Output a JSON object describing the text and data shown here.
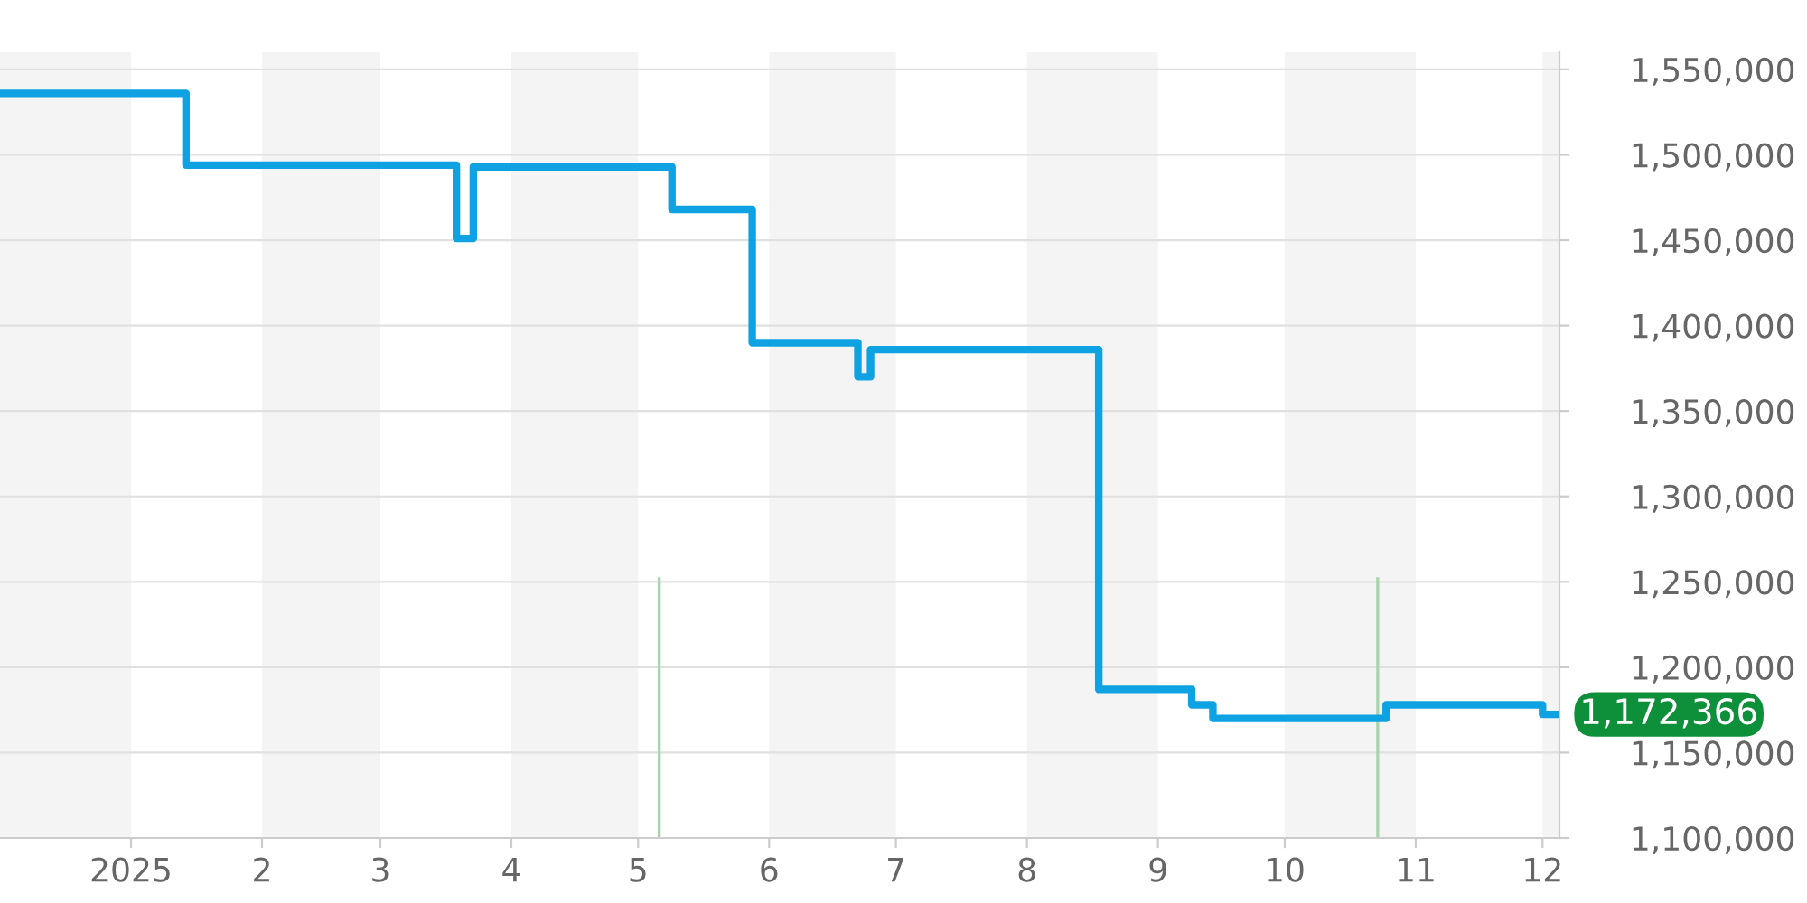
{
  "chart_data": {
    "type": "step",
    "x": [
      "2024-12-01",
      "2025-01-14",
      "2025-03-19",
      "2025-03-23",
      "2025-05-09",
      "2025-05-28",
      "2025-06-22",
      "2025-06-25",
      "2025-08-18",
      "2025-09-09",
      "2025-09-14",
      "2025-10-25",
      "2025-12-01",
      "2025-12-05"
    ],
    "series": [
      {
        "color": "#0ea2e3",
        "values": [
          1536000,
          1494000,
          1451000,
          1493000,
          1468000,
          1390000,
          1370000,
          1386000,
          1187000,
          1178000,
          1170000,
          1178000,
          1172366,
          1172366
        ]
      }
    ],
    "xlim": [
      "2024-12-01",
      "2025-12-05"
    ],
    "xticks": [
      {
        "value": "2025-01-01",
        "label": "2025"
      },
      {
        "value": "2025-02-01",
        "label": "2"
      },
      {
        "value": "2025-03-01",
        "label": "3"
      },
      {
        "value": "2025-04-01",
        "label": "4"
      },
      {
        "value": "2025-05-01",
        "label": "5"
      },
      {
        "value": "2025-06-01",
        "label": "6"
      },
      {
        "value": "2025-07-01",
        "label": "7"
      },
      {
        "value": "2025-08-01",
        "label": "8"
      },
      {
        "value": "2025-09-01",
        "label": "9"
      },
      {
        "value": "2025-10-01",
        "label": "10"
      },
      {
        "value": "2025-11-01",
        "label": "11"
      },
      {
        "value": "2025-12-01",
        "label": "12"
      }
    ],
    "ylim": [
      1100000,
      1560000
    ],
    "yticks": [
      {
        "value": 1100000,
        "label": "1,100,000"
      },
      {
        "value": 1150000,
        "label": "1,150,000"
      },
      {
        "value": 1200000,
        "label": "1,200,000"
      },
      {
        "value": 1250000,
        "label": "1,250,000"
      },
      {
        "value": 1300000,
        "label": "1,300,000"
      },
      {
        "value": 1350000,
        "label": "1,350,000"
      },
      {
        "value": 1400000,
        "label": "1,400,000"
      },
      {
        "value": 1450000,
        "label": "1,450,000"
      },
      {
        "value": 1500000,
        "label": "1,500,000"
      },
      {
        "value": 1550000,
        "label": "1,550,000"
      }
    ],
    "bands": [
      {
        "axis": "x",
        "from": "2024-12-01",
        "to": "2025-01-01",
        "color": "#f4f4f4"
      },
      {
        "axis": "x",
        "from": "2025-02-01",
        "to": "2025-03-01",
        "color": "#f4f4f4"
      },
      {
        "axis": "x",
        "from": "2025-04-01",
        "to": "2025-05-01",
        "color": "#f4f4f4"
      },
      {
        "axis": "x",
        "from": "2025-06-01",
        "to": "2025-07-01",
        "color": "#f4f4f4"
      },
      {
        "axis": "x",
        "from": "2025-08-01",
        "to": "2025-09-01",
        "color": "#f4f4f4"
      },
      {
        "axis": "x",
        "from": "2025-10-01",
        "to": "2025-11-01",
        "color": "#f4f4f4"
      },
      {
        "axis": "x",
        "from": "2025-12-01",
        "to": "2025-12-05",
        "color": "#f4f4f4"
      }
    ],
    "ref_lines": [
      {
        "axis": "x",
        "value": "2025-05-06",
        "color": "#a8d5ad"
      },
      {
        "axis": "x",
        "value": "2025-10-23",
        "color": "#a8d5ad"
      }
    ],
    "annotations": [
      {
        "text": "1,172,366",
        "x": "2025-12-05",
        "y": 1172366
      }
    ],
    "grid": "y",
    "legend": false
  }
}
